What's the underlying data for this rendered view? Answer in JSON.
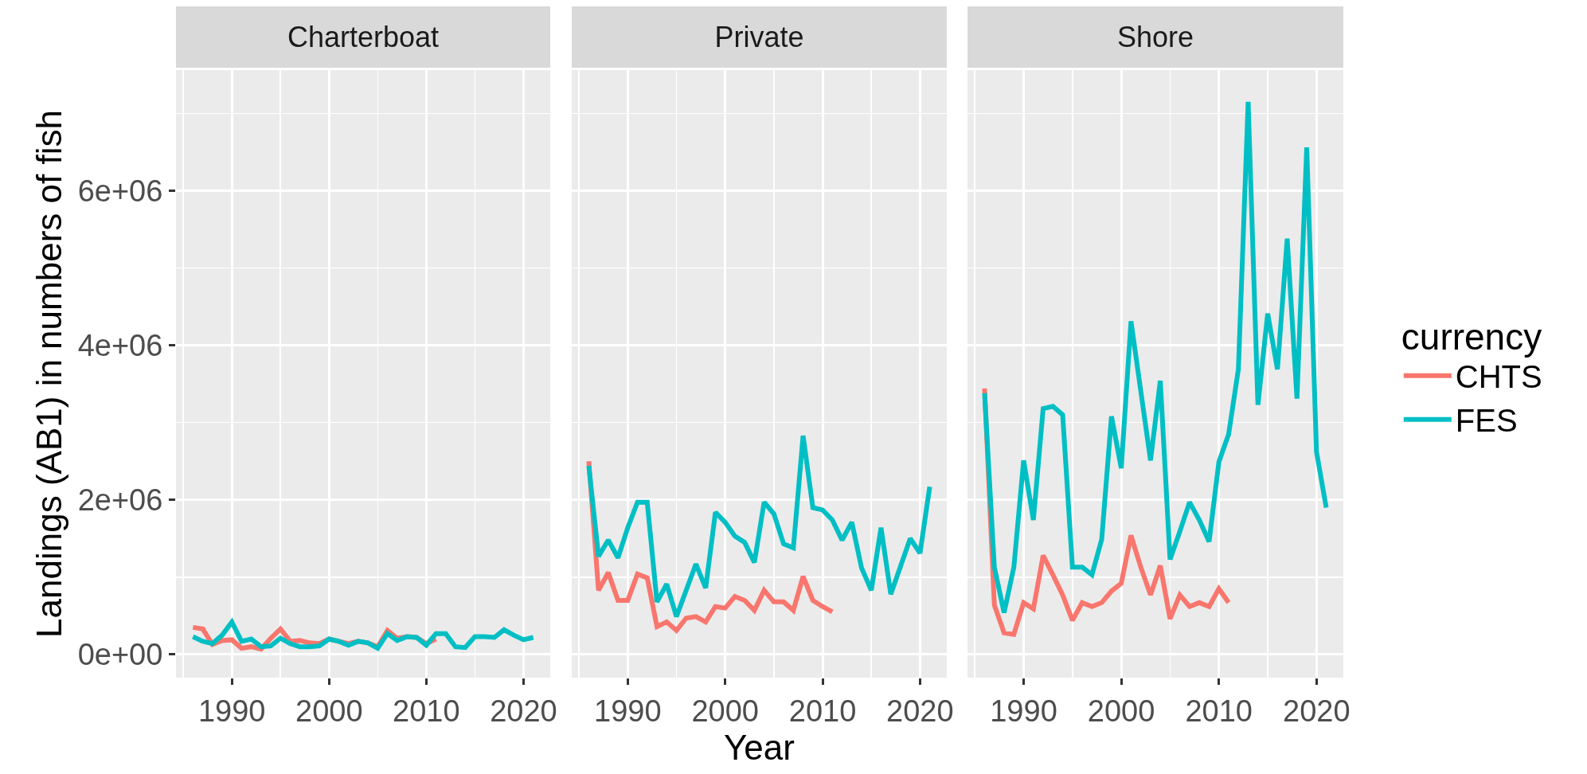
{
  "chart_data": [
    {
      "type": "line",
      "title": "Charterboat",
      "ylabel": "Landings (AB1) in numbers of fish",
      "x": [
        1986,
        1987,
        1988,
        1989,
        1990,
        1991,
        1992,
        1993,
        1994,
        1995,
        1996,
        1997,
        1998,
        1999,
        2000,
        2001,
        2002,
        2003,
        2004,
        2005,
        2006,
        2007,
        2008,
        2009,
        2010,
        2011,
        2012,
        2013,
        2014,
        2015,
        2016,
        2017,
        2018,
        2019,
        2020,
        2021
      ],
      "series": [
        {
          "color": "#f8766d",
          "values": [
            350000,
            330000,
            130000,
            180000,
            190000,
            80000,
            100000,
            70000,
            210000,
            330000,
            170000,
            180000,
            150000,
            140000,
            200000,
            170000,
            140000,
            170000,
            150000,
            100000,
            310000,
            210000,
            230000,
            220000,
            140000,
            200000,
            null,
            null,
            null,
            null,
            null,
            null,
            null,
            null,
            null,
            null
          ]
        },
        {
          "color": "#00bfc4",
          "values": [
            230000,
            170000,
            140000,
            250000,
            420000,
            170000,
            200000,
            100000,
            110000,
            210000,
            140000,
            100000,
            100000,
            110000,
            200000,
            170000,
            120000,
            170000,
            150000,
            80000,
            270000,
            180000,
            230000,
            220000,
            120000,
            270000,
            270000,
            100000,
            90000,
            230000,
            230000,
            220000,
            320000,
            250000,
            190000,
            220000
          ]
        }
      ],
      "xlim": [
        1984.25,
        2022.75
      ],
      "ylim": [
        -300000,
        7560000
      ],
      "xticks": [
        1990,
        2000,
        2010,
        2020
      ],
      "yticks": [
        {
          "value": 0,
          "label": "0e+00"
        },
        {
          "value": 2000000,
          "label": "2e+06"
        },
        {
          "value": 4000000,
          "label": "4e+06"
        },
        {
          "value": 6000000,
          "label": "6e+06"
        }
      ],
      "grid": true,
      "legend": false
    },
    {
      "type": "line",
      "title": "Private",
      "xlabel": "Year",
      "x": [
        1986,
        1987,
        1988,
        1989,
        1990,
        1991,
        1992,
        1993,
        1994,
        1995,
        1996,
        1997,
        1998,
        1999,
        2000,
        2001,
        2002,
        2003,
        2004,
        2005,
        2006,
        2007,
        2008,
        2009,
        2010,
        2011,
        2012,
        2013,
        2014,
        2015,
        2016,
        2017,
        2018,
        2019,
        2020,
        2021
      ],
      "series": [
        {
          "color": "#f8766d",
          "values": [
            2500000,
            830000,
            1060000,
            700000,
            700000,
            1040000,
            990000,
            360000,
            420000,
            310000,
            470000,
            490000,
            420000,
            620000,
            600000,
            750000,
            700000,
            570000,
            830000,
            680000,
            680000,
            570000,
            1010000,
            700000,
            620000,
            550000,
            null,
            null,
            null,
            null,
            null,
            null,
            null,
            null,
            null,
            null
          ]
        },
        {
          "color": "#00bfc4",
          "values": [
            2440000,
            1270000,
            1480000,
            1250000,
            1640000,
            1970000,
            1970000,
            680000,
            910000,
            490000,
            830000,
            1170000,
            860000,
            1840000,
            1710000,
            1530000,
            1450000,
            1190000,
            1970000,
            1820000,
            1430000,
            1380000,
            2830000,
            1900000,
            1870000,
            1740000,
            1480000,
            1710000,
            1120000,
            830000,
            1640000,
            780000,
            1140000,
            1500000,
            1310000,
            2170000
          ]
        }
      ],
      "xlim": [
        1984.25,
        2022.75
      ],
      "ylim": [
        -300000,
        7560000
      ],
      "xticks": [
        1990,
        2000,
        2010,
        2020
      ],
      "yticks": [
        {
          "value": 0,
          "label": null
        },
        {
          "value": 2000000,
          "label": null
        },
        {
          "value": 4000000,
          "label": null
        },
        {
          "value": 6000000,
          "label": null
        }
      ],
      "grid": true,
      "legend": false,
      "tick_labels": "x"
    },
    {
      "type": "line",
      "title": "Shore",
      "legend_title": "currency",
      "x": [
        1986,
        1987,
        1988,
        1989,
        1990,
        1991,
        1992,
        1993,
        1994,
        1995,
        1996,
        1997,
        1998,
        1999,
        2000,
        2001,
        2002,
        2003,
        2004,
        2005,
        2006,
        2007,
        2008,
        2009,
        2010,
        2011,
        2012,
        2013,
        2014,
        2015,
        2016,
        2017,
        2018,
        2019,
        2020,
        2021
      ],
      "series": [
        {
          "name": "CHTS",
          "color": "#f8766d",
          "values": [
            3440000,
            640000,
            280000,
            260000,
            670000,
            590000,
            1280000,
            1030000,
            770000,
            440000,
            670000,
            620000,
            670000,
            820000,
            920000,
            1540000,
            1130000,
            770000,
            1150000,
            460000,
            770000,
            620000,
            670000,
            620000,
            850000,
            670000,
            null,
            null,
            null,
            null,
            null,
            null,
            null,
            null,
            null,
            null
          ]
        },
        {
          "name": "FES",
          "color": "#00bfc4",
          "values": [
            3380000,
            1130000,
            540000,
            1130000,
            2510000,
            1740000,
            3180000,
            3210000,
            3100000,
            1130000,
            1130000,
            1030000,
            1490000,
            3080000,
            2410000,
            4310000,
            3410000,
            2510000,
            3540000,
            1230000,
            1590000,
            1970000,
            1740000,
            1460000,
            2490000,
            2850000,
            3690000,
            7150000,
            3230000,
            4410000,
            3690000,
            5380000,
            3310000,
            6560000,
            2620000,
            1900000
          ]
        }
      ],
      "xlim": [
        1984.25,
        2022.75
      ],
      "ylim": [
        -300000,
        7560000
      ],
      "xticks": [
        1990,
        2000,
        2010,
        2020
      ],
      "yticks": [
        {
          "value": 0,
          "label": null
        },
        {
          "value": 2000000,
          "label": null
        },
        {
          "value": 4000000,
          "label": null
        },
        {
          "value": 6000000,
          "label": null
        }
      ],
      "grid": true,
      "legend": "right",
      "tick_labels": "x"
    }
  ]
}
